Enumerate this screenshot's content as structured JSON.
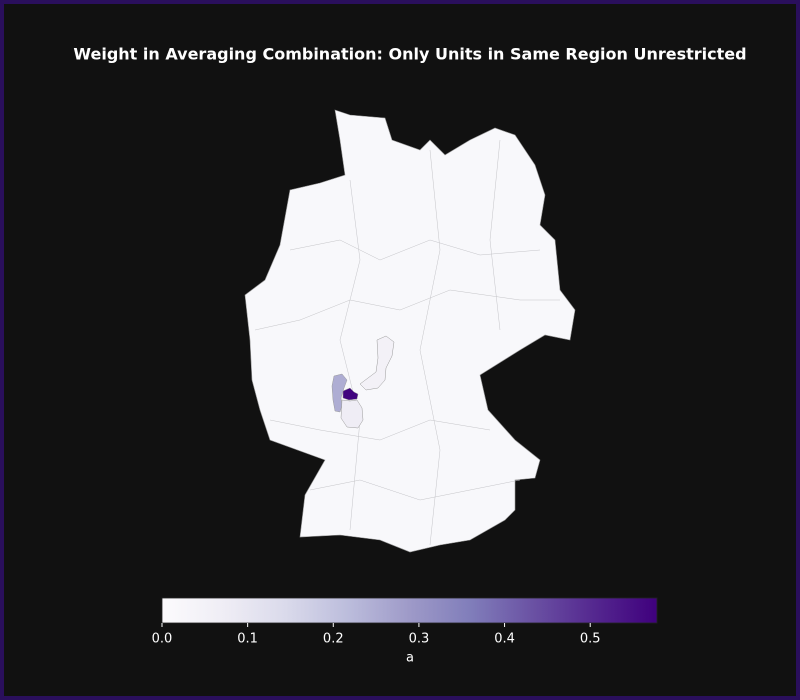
{
  "chart_data": {
    "type": "choropleth",
    "title": "Weight in Averaging Combination: Only Units in Same Region Unrestricted",
    "values": [
      0.57,
      0.25,
      0.07,
      0.05
    ],
    "colormap": "Purples",
    "clim": [
      0,
      0.578
    ],
    "cticks": [
      {
        "value": 0,
        "label": "0.0"
      },
      {
        "value": 0.1,
        "label": "0.1"
      },
      {
        "value": 0.2,
        "label": "0.2"
      },
      {
        "value": 0.3,
        "label": "0.3"
      },
      {
        "value": 0.4,
        "label": "0.4"
      },
      {
        "value": 0.5,
        "label": "0.5"
      }
    ],
    "colorbar_label": "a"
  }
}
